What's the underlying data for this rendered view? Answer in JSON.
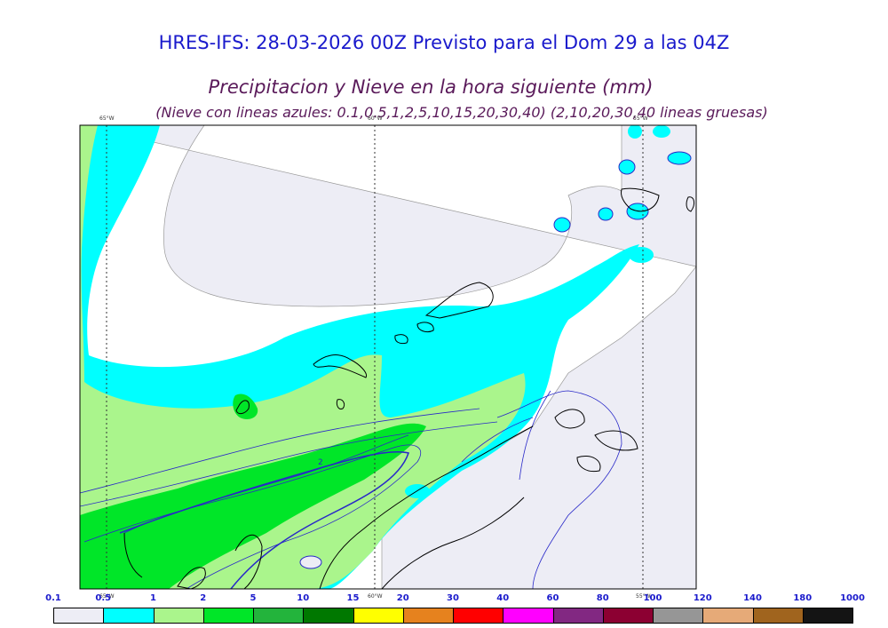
{
  "header": {
    "title": "HRES-IFS: 28-03-2026 00Z Previsto para el Dom 29 a las 04Z",
    "subtitle": "Precipitacion y Nieve en la hora siguiente (mm)",
    "subtitle2": "(Nieve con lineas azules: 0.1,0.5,1,2,5,10,15,20,30,40)  (2,10,20,30,40 lineas gruesas)"
  },
  "map": {
    "longitude_labels": [
      "65°W",
      "60°W",
      "55°W"
    ],
    "contour_label": "2"
  },
  "colorbar": {
    "labels": [
      "0.1",
      "0.5",
      "1",
      "2",
      "5",
      "10",
      "15",
      "20",
      "30",
      "40",
      "60",
      "80",
      "100",
      "120",
      "140",
      "180",
      "1000"
    ],
    "colors": [
      "#ededf5",
      "#00ffff",
      "#aaf58c",
      "#00e628",
      "#23b43c",
      "#007800",
      "#ffff00",
      "#e6821e",
      "#ff0000",
      "#ff00ff",
      "#822882",
      "#8c0032",
      "#969696",
      "#e6aa78",
      "#a0641e",
      "#141414"
    ]
  },
  "colors": {
    "title": "#1a1acc",
    "subtitle": "#5a1a5a",
    "snow_lines": "#2828c8",
    "coast": "#000000"
  }
}
